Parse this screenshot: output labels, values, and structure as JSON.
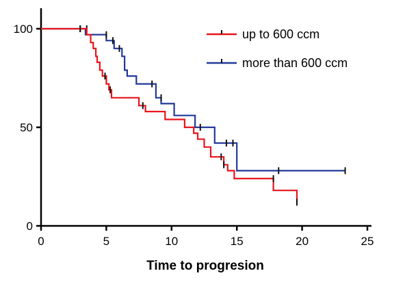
{
  "chart_data": {
    "type": "line",
    "title": "",
    "xlabel": "Time to progresion",
    "ylabel": "",
    "xlim": [
      0,
      25
    ],
    "ylim": [
      0,
      100
    ],
    "x_ticks": [
      "0",
      "5",
      "10",
      "15",
      "20",
      "25"
    ],
    "y_ticks": [
      "0",
      "50",
      "100"
    ],
    "legend_position": "top-right",
    "grid": false,
    "series": [
      {
        "name": "up to 600 ccm",
        "color": "#e8141b",
        "step_points": [
          [
            0,
            100
          ],
          [
            3.5,
            100
          ],
          [
            3.5,
            97
          ],
          [
            3.8,
            97
          ],
          [
            3.8,
            93
          ],
          [
            4.0,
            93
          ],
          [
            4.0,
            90
          ],
          [
            4.2,
            90
          ],
          [
            4.2,
            86
          ],
          [
            4.3,
            86
          ],
          [
            4.3,
            83
          ],
          [
            4.5,
            83
          ],
          [
            4.5,
            79
          ],
          [
            4.7,
            79
          ],
          [
            4.7,
            76
          ],
          [
            5.0,
            76
          ],
          [
            5.0,
            72
          ],
          [
            5.2,
            72
          ],
          [
            5.2,
            69
          ],
          [
            5.4,
            69
          ],
          [
            5.4,
            65
          ],
          [
            7.5,
            65
          ],
          [
            7.5,
            61
          ],
          [
            8.0,
            61
          ],
          [
            8.0,
            58
          ],
          [
            9.5,
            58
          ],
          [
            9.5,
            54
          ],
          [
            11.0,
            54
          ],
          [
            11.0,
            50
          ],
          [
            11.7,
            50
          ],
          [
            11.7,
            47
          ],
          [
            12.0,
            47
          ],
          [
            12.0,
            44
          ],
          [
            12.5,
            44
          ],
          [
            12.5,
            40
          ],
          [
            13.0,
            40
          ],
          [
            13.0,
            35
          ],
          [
            14.0,
            35
          ],
          [
            14.0,
            31
          ],
          [
            14.3,
            31
          ],
          [
            14.3,
            28
          ],
          [
            14.8,
            28
          ],
          [
            14.8,
            24
          ],
          [
            17.8,
            24
          ],
          [
            17.8,
            18
          ],
          [
            19.6,
            18
          ],
          [
            19.6,
            12
          ]
        ],
        "censored": [
          [
            3.0,
            100
          ],
          [
            4.9,
            76
          ],
          [
            5.3,
            69
          ],
          [
            7.8,
            61
          ],
          [
            13.8,
            35
          ],
          [
            14.0,
            31
          ],
          [
            17.8,
            24
          ],
          [
            19.6,
            12
          ]
        ]
      },
      {
        "name": "more than 600 ccm",
        "color": "#22389a",
        "step_points": [
          [
            0,
            100
          ],
          [
            3.4,
            100
          ],
          [
            3.4,
            97
          ],
          [
            5.0,
            97
          ],
          [
            5.0,
            94
          ],
          [
            5.6,
            94
          ],
          [
            5.6,
            90
          ],
          [
            6.2,
            90
          ],
          [
            6.2,
            86
          ],
          [
            6.4,
            86
          ],
          [
            6.4,
            79
          ],
          [
            6.6,
            79
          ],
          [
            6.6,
            76
          ],
          [
            7.3,
            76
          ],
          [
            7.3,
            72
          ],
          [
            8.8,
            72
          ],
          [
            8.8,
            65
          ],
          [
            9.2,
            65
          ],
          [
            9.2,
            62
          ],
          [
            10.2,
            62
          ],
          [
            10.2,
            56
          ],
          [
            11.8,
            56
          ],
          [
            11.8,
            50
          ],
          [
            13.3,
            50
          ],
          [
            13.3,
            42
          ],
          [
            15.0,
            42
          ],
          [
            15.0,
            28
          ],
          [
            23.3,
            28
          ]
        ],
        "censored": [
          [
            3.0,
            100
          ],
          [
            3.5,
            100
          ],
          [
            5.0,
            97
          ],
          [
            5.5,
            94
          ],
          [
            6.0,
            90
          ],
          [
            8.5,
            72
          ],
          [
            9.2,
            65
          ],
          [
            12.2,
            50
          ],
          [
            14.2,
            42
          ],
          [
            14.7,
            42
          ],
          [
            18.2,
            28
          ],
          [
            23.3,
            28
          ]
        ]
      }
    ]
  }
}
